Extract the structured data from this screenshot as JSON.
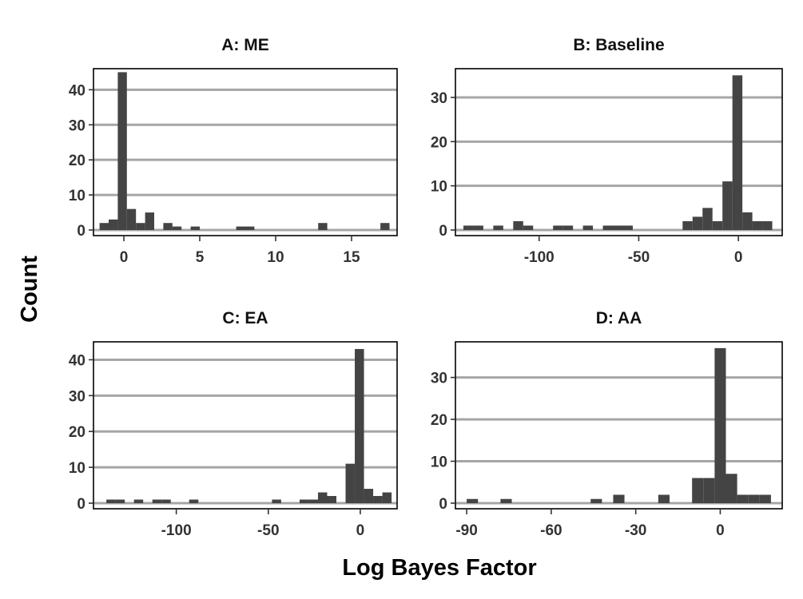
{
  "figure": {
    "xlabel": "Log Bayes Factor",
    "ylabel": "Count"
  },
  "chart_data": [
    {
      "type": "bar",
      "title": "A: ME",
      "xlim": [
        -2,
        18
      ],
      "ylim": [
        0,
        46
      ],
      "xticks": [
        0,
        5,
        10,
        15
      ],
      "yticks": [
        0,
        10,
        20,
        30,
        40
      ],
      "grid": true,
      "bin_width": 0.6,
      "bins": [
        {
          "x0": -1.6,
          "x1": -1.0,
          "count": 2
        },
        {
          "x0": -1.0,
          "x1": -0.4,
          "count": 3
        },
        {
          "x0": -0.4,
          "x1": 0.2,
          "count": 45
        },
        {
          "x0": 0.2,
          "x1": 0.8,
          "count": 6
        },
        {
          "x0": 0.8,
          "x1": 1.4,
          "count": 2
        },
        {
          "x0": 1.4,
          "x1": 2.0,
          "count": 5
        },
        {
          "x0": 2.6,
          "x1": 3.2,
          "count": 2
        },
        {
          "x0": 3.2,
          "x1": 3.8,
          "count": 1
        },
        {
          "x0": 4.4,
          "x1": 5.0,
          "count": 1
        },
        {
          "x0": 7.4,
          "x1": 8.0,
          "count": 1
        },
        {
          "x0": 8.0,
          "x1": 8.6,
          "count": 1
        },
        {
          "x0": 12.8,
          "x1": 13.4,
          "count": 2
        },
        {
          "x0": 16.9,
          "x1": 17.5,
          "count": 2
        }
      ]
    },
    {
      "type": "bar",
      "title": "B: Baseline",
      "xlim": [
        -142,
        22
      ],
      "ylim": [
        0,
        36.5
      ],
      "xticks": [
        -100,
        -50,
        0
      ],
      "yticks": [
        0,
        10,
        20,
        30
      ],
      "grid": true,
      "bin_width": 5,
      "bins": [
        {
          "x0": -138,
          "x1": -133,
          "count": 1
        },
        {
          "x0": -133,
          "x1": -128,
          "count": 1
        },
        {
          "x0": -123,
          "x1": -118,
          "count": 1
        },
        {
          "x0": -113,
          "x1": -108,
          "count": 2
        },
        {
          "x0": -108,
          "x1": -103,
          "count": 1
        },
        {
          "x0": -93,
          "x1": -88,
          "count": 1
        },
        {
          "x0": -88,
          "x1": -83,
          "count": 1
        },
        {
          "x0": -78,
          "x1": -73,
          "count": 1
        },
        {
          "x0": -68,
          "x1": -63,
          "count": 1
        },
        {
          "x0": -63,
          "x1": -58,
          "count": 1
        },
        {
          "x0": -58,
          "x1": -53,
          "count": 1
        },
        {
          "x0": -28,
          "x1": -23,
          "count": 2
        },
        {
          "x0": -23,
          "x1": -18,
          "count": 3
        },
        {
          "x0": -18,
          "x1": -13,
          "count": 5
        },
        {
          "x0": -13,
          "x1": -8,
          "count": 2
        },
        {
          "x0": -8,
          "x1": -3,
          "count": 11
        },
        {
          "x0": -3,
          "x1": 2,
          "count": 35
        },
        {
          "x0": 2,
          "x1": 7,
          "count": 4
        },
        {
          "x0": 7,
          "x1": 12,
          "count": 2
        },
        {
          "x0": 12,
          "x1": 17,
          "count": 2
        }
      ]
    },
    {
      "type": "bar",
      "title": "C: EA",
      "xlim": [
        -145,
        20
      ],
      "ylim": [
        0,
        45
      ],
      "xticks": [
        -100,
        -50,
        0
      ],
      "yticks": [
        0,
        10,
        20,
        30,
        40
      ],
      "grid": true,
      "bin_width": 5,
      "bins": [
        {
          "x0": -138,
          "x1": -133,
          "count": 1
        },
        {
          "x0": -133,
          "x1": -128,
          "count": 1
        },
        {
          "x0": -123,
          "x1": -118,
          "count": 1
        },
        {
          "x0": -113,
          "x1": -108,
          "count": 1
        },
        {
          "x0": -108,
          "x1": -103,
          "count": 1
        },
        {
          "x0": -93,
          "x1": -88,
          "count": 1
        },
        {
          "x0": -48,
          "x1": -43,
          "count": 1
        },
        {
          "x0": -33,
          "x1": -28,
          "count": 1
        },
        {
          "x0": -28,
          "x1": -23,
          "count": 1
        },
        {
          "x0": -23,
          "x1": -18,
          "count": 3
        },
        {
          "x0": -18,
          "x1": -13,
          "count": 2
        },
        {
          "x0": -8,
          "x1": -3,
          "count": 11
        },
        {
          "x0": -3,
          "x1": 2,
          "count": 43
        },
        {
          "x0": 2,
          "x1": 7,
          "count": 4
        },
        {
          "x0": 7,
          "x1": 12,
          "count": 2
        },
        {
          "x0": 12,
          "x1": 17,
          "count": 3
        }
      ]
    },
    {
      "type": "bar",
      "title": "D: AA",
      "xlim": [
        -94,
        22
      ],
      "ylim": [
        0,
        38.5
      ],
      "xticks": [
        -90,
        -60,
        -30,
        0
      ],
      "yticks": [
        0,
        10,
        20,
        30
      ],
      "grid": true,
      "bin_width": 4,
      "bins": [
        {
          "x0": -90,
          "x1": -86,
          "count": 1
        },
        {
          "x0": -78,
          "x1": -74,
          "count": 1
        },
        {
          "x0": -46,
          "x1": -42,
          "count": 1
        },
        {
          "x0": -38,
          "x1": -34,
          "count": 2
        },
        {
          "x0": -22,
          "x1": -18,
          "count": 2
        },
        {
          "x0": -10,
          "x1": -6,
          "count": 6
        },
        {
          "x0": -6,
          "x1": -2,
          "count": 6
        },
        {
          "x0": -2,
          "x1": 2,
          "count": 37
        },
        {
          "x0": 2,
          "x1": 6,
          "count": 7
        },
        {
          "x0": 6,
          "x1": 10,
          "count": 2
        },
        {
          "x0": 10,
          "x1": 14,
          "count": 2
        },
        {
          "x0": 14,
          "x1": 18,
          "count": 2
        }
      ]
    }
  ]
}
